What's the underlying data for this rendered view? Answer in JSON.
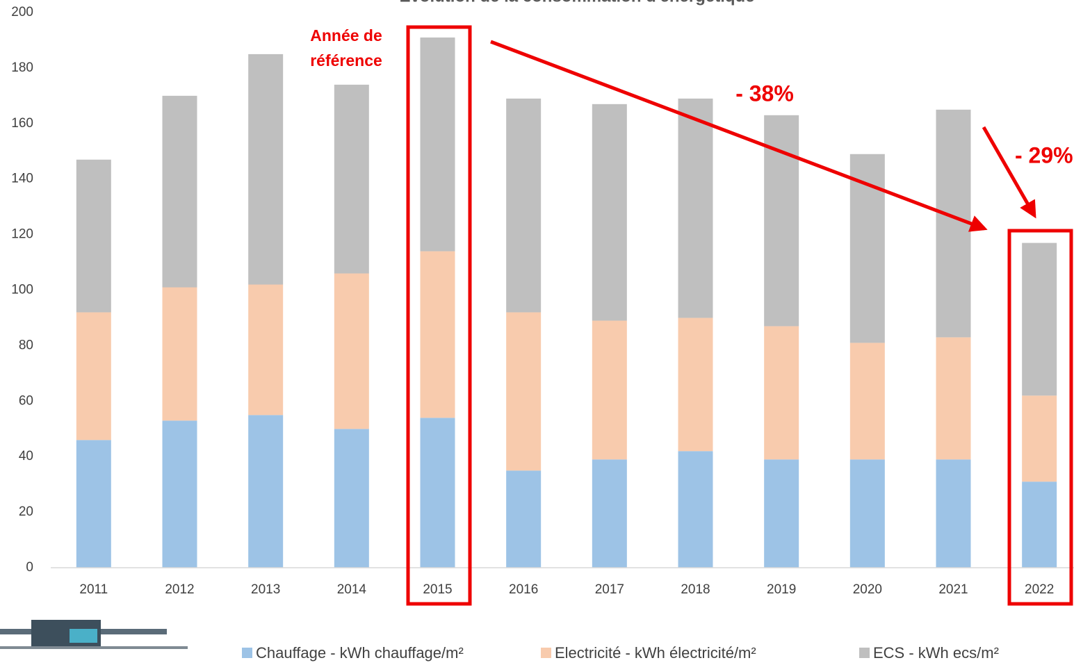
{
  "chart_data": {
    "type": "stacked_bar",
    "title": "Evolution de la consommation d'énergétique",
    "categories": [
      "2011",
      "2012",
      "2013",
      "2014",
      "2015",
      "2016",
      "2017",
      "2018",
      "2019",
      "2020",
      "2021",
      "2022"
    ],
    "series": [
      {
        "name": "Chauffage - kWh chauffage/m²",
        "color": "#9dc3e6",
        "values": [
          46,
          53,
          55,
          50,
          54,
          35,
          39,
          42,
          39,
          39,
          39,
          31
        ]
      },
      {
        "name": "Electricité - kWh électricité/m²",
        "color": "#f8cbad",
        "values": [
          46,
          48,
          47,
          56,
          60,
          57,
          50,
          48,
          48,
          42,
          44,
          31
        ]
      },
      {
        "name": "ECS - kWh ecs/m²",
        "color": "#bfbfbf",
        "values": [
          55,
          69,
          83,
          68,
          77,
          77,
          78,
          79,
          76,
          68,
          82,
          55
        ]
      }
    ],
    "ylim": [
      0,
      200
    ],
    "yticks": [
      0,
      20,
      40,
      60,
      80,
      100,
      120,
      140,
      160,
      180,
      200
    ],
    "annotations": [
      "Année de",
      "référence",
      "- 38%",
      "- 29%"
    ]
  }
}
